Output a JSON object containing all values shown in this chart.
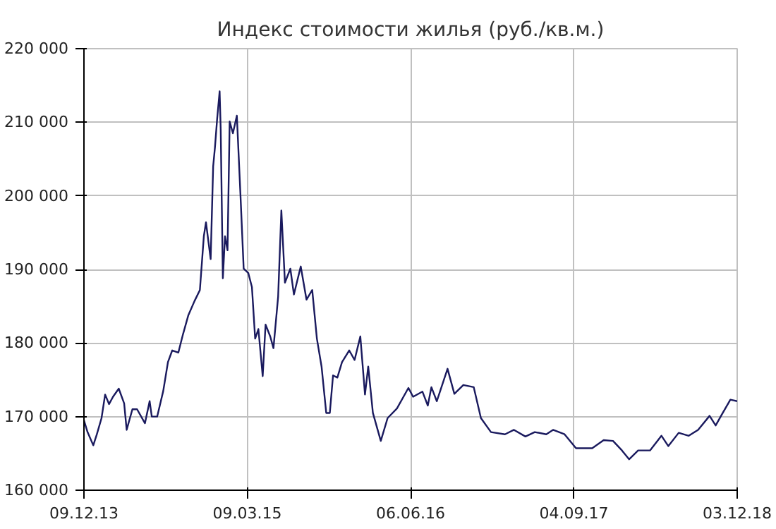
{
  "chart_data": {
    "type": "line",
    "title": "Индекс стоимости жилья (руб./кв.м.)",
    "x": [
      "2013-12-09",
      "2013-12-19",
      "2014-01-04",
      "2014-01-14",
      "2014-01-27",
      "2014-02-06",
      "2014-02-17",
      "2014-02-28",
      "2014-03-16",
      "2014-03-31",
      "2014-04-07",
      "2014-04-23",
      "2014-05-06",
      "2014-05-28",
      "2014-06-10",
      "2014-06-16",
      "2014-07-01",
      "2014-07-18",
      "2014-07-31",
      "2014-08-12",
      "2014-08-29",
      "2014-09-11",
      "2014-09-26",
      "2014-10-13",
      "2014-10-28",
      "2014-11-08",
      "2014-11-14",
      "2014-11-27",
      "2014-12-04",
      "2014-12-09",
      "2014-12-15",
      "2014-12-22",
      "2014-12-25",
      "2014-12-31",
      "2015-01-06",
      "2015-01-13",
      "2015-01-19",
      "2015-01-28",
      "2015-02-08",
      "2015-02-18",
      "2015-02-27",
      "2015-03-12",
      "2015-03-22",
      "2015-03-31",
      "2015-04-09",
      "2015-04-21",
      "2015-04-29",
      "2015-05-12",
      "2015-05-21",
      "2015-06-03",
      "2015-06-12",
      "2015-06-22",
      "2015-07-07",
      "2015-07-17",
      "2015-08-05",
      "2015-08-21",
      "2015-09-06",
      "2015-09-19",
      "2015-10-02",
      "2015-10-15",
      "2015-10-25",
      "2015-11-03",
      "2015-11-15",
      "2015-11-28",
      "2015-12-18",
      "2016-01-02",
      "2016-01-18",
      "2016-01-31",
      "2016-02-09",
      "2016-02-22",
      "2016-03-15",
      "2016-04-03",
      "2016-04-29",
      "2016-05-31",
      "2016-06-13",
      "2016-07-09",
      "2016-07-24",
      "2016-08-03",
      "2016-08-18",
      "2016-09-17",
      "2016-10-06",
      "2016-10-31",
      "2016-11-29",
      "2016-12-19",
      "2017-01-16",
      "2017-02-24",
      "2017-03-21",
      "2017-04-22",
      "2017-05-18",
      "2017-06-19",
      "2017-07-08",
      "2017-08-09",
      "2017-09-10",
      "2017-10-06",
      "2017-10-25",
      "2017-11-26",
      "2017-12-22",
      "2018-01-16",
      "2018-02-05",
      "2018-03-02",
      "2018-04-04",
      "2018-05-06",
      "2018-05-25",
      "2018-06-23",
      "2018-07-21",
      "2018-08-16",
      "2018-09-17",
      "2018-10-04",
      "2018-10-19",
      "2018-11-14",
      "2018-12-03"
    ],
    "series": [
      {
        "color": "#1a1a5e",
        "values": [
          169500,
          167900,
          166100,
          167600,
          169800,
          173000,
          171700,
          172700,
          173800,
          171800,
          168200,
          171000,
          171000,
          169100,
          172100,
          170000,
          170000,
          173500,
          177400,
          179000,
          178700,
          181200,
          183800,
          185700,
          187200,
          194500,
          196400,
          191400,
          204000,
          206600,
          210400,
          214200,
          209100,
          188800,
          194500,
          192600,
          210100,
          208500,
          210900,
          200200,
          190100,
          189500,
          187600,
          180600,
          181900,
          175500,
          182500,
          180900,
          179300,
          186300,
          198000,
          188200,
          190100,
          186600,
          190400,
          185900,
          187200,
          180600,
          176800,
          170500,
          170500,
          175600,
          175300,
          177400,
          179000,
          177700,
          180900,
          173000,
          176800,
          170500,
          166700,
          169800,
          171100,
          173900,
          172700,
          173400,
          171500,
          174000,
          172100,
          176500,
          173100,
          174300,
          174000,
          169800,
          167900,
          167600,
          168200,
          167300,
          167900,
          167600,
          168200,
          167600,
          165700,
          165700,
          165700,
          166800,
          166700,
          165400,
          164200,
          165400,
          165400,
          167400,
          166000,
          167800,
          167400,
          168200,
          170100,
          168800,
          170100,
          172300,
          172100
        ]
      }
    ],
    "xlim": [
      "2013-12-09",
      "2018-12-03"
    ],
    "xticks": [
      {
        "value": "2013-12-09",
        "label": "09.12.13"
      },
      {
        "value": "2015-03-09",
        "label": "09.03.15"
      },
      {
        "value": "2016-06-06",
        "label": "06.06.16"
      },
      {
        "value": "2017-09-04",
        "label": "04.09.17"
      },
      {
        "value": "2018-12-03",
        "label": "03.12.18"
      }
    ],
    "ylim": [
      160000,
      220000
    ],
    "yticks": [
      {
        "value": 160000,
        "label": "160 000"
      },
      {
        "value": 170000,
        "label": "170 000"
      },
      {
        "value": 180000,
        "label": "180 000"
      },
      {
        "value": 190000,
        "label": "190 000"
      },
      {
        "value": 200000,
        "label": "200 000"
      },
      {
        "value": 210000,
        "label": "210 000"
      },
      {
        "value": 220000,
        "label": "220 000"
      }
    ],
    "grid": true,
    "line_style": "solid",
    "marker": "none"
  }
}
